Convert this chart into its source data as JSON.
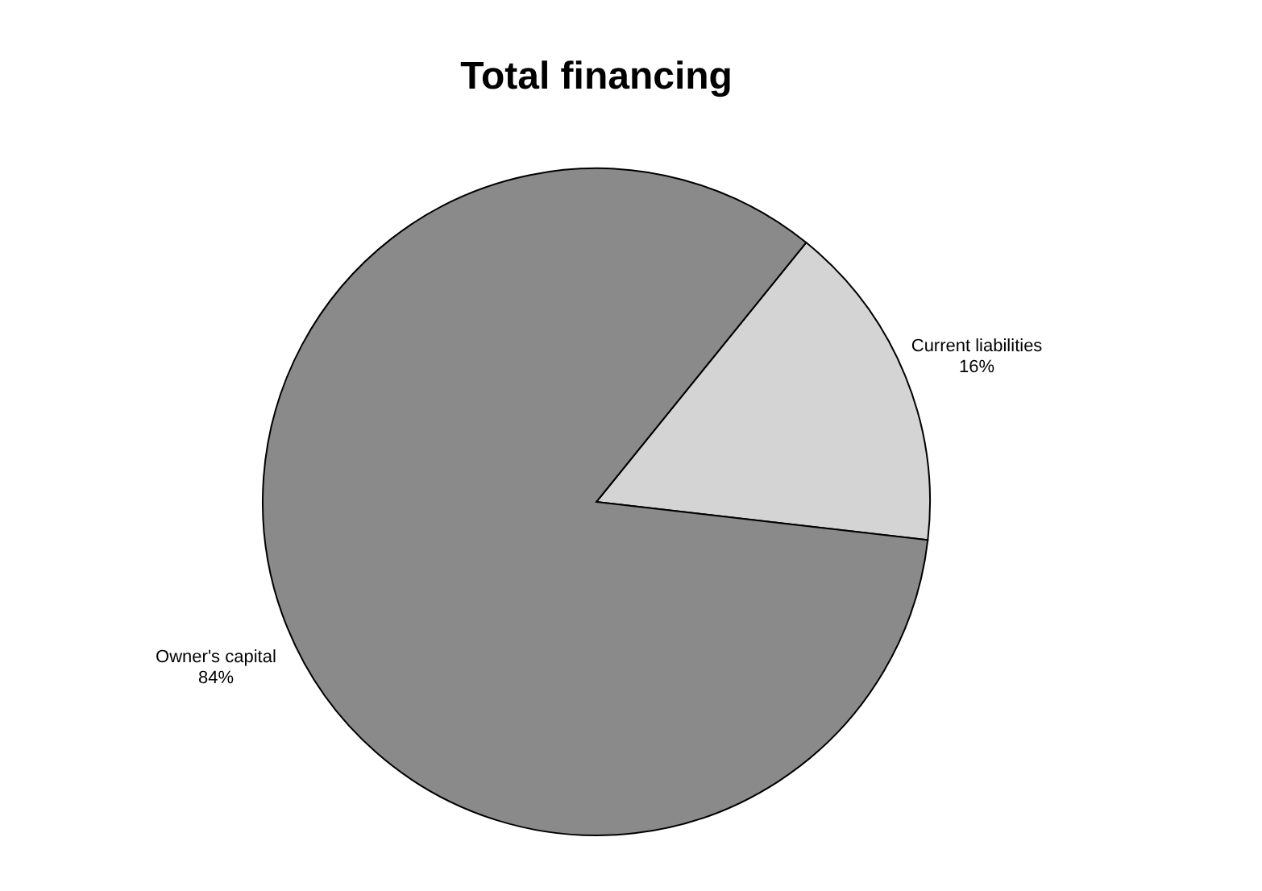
{
  "chart_data": {
    "type": "pie",
    "title": "Total financing",
    "categories": [
      "Current liabilities",
      "Owner's capital"
    ],
    "values": [
      16,
      84
    ],
    "colors": [
      "#d4d4d4",
      "#8a8a8a"
    ],
    "value_labels": [
      "16%",
      "84%"
    ],
    "legend": false
  }
}
